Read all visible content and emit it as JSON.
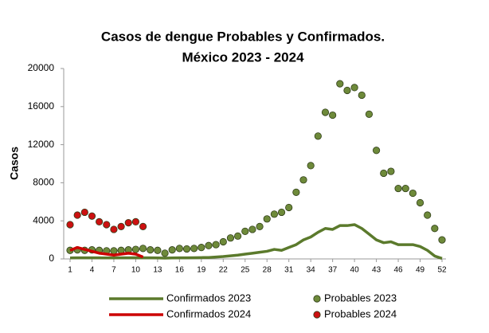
{
  "chart_data": {
    "type": "line",
    "title": [
      "Casos de dengue Probables y Confirmados.",
      "México 2023 - 2024"
    ],
    "y_label": "Casos",
    "x": [
      1,
      2,
      3,
      4,
      5,
      6,
      7,
      8,
      9,
      10,
      11,
      12,
      13,
      14,
      15,
      16,
      17,
      18,
      19,
      20,
      21,
      22,
      23,
      24,
      25,
      26,
      27,
      28,
      29,
      30,
      31,
      32,
      33,
      34,
      35,
      36,
      37,
      38,
      39,
      40,
      41,
      42,
      43,
      44,
      45,
      46,
      47,
      48,
      49,
      50,
      51,
      52
    ],
    "xlim": [
      1,
      52
    ],
    "xticks": [
      1,
      4,
      7,
      10,
      13,
      16,
      19,
      22,
      25,
      28,
      31,
      34,
      37,
      40,
      43,
      46,
      49,
      52
    ],
    "ylim": [
      0,
      20000
    ],
    "yticks": [
      0,
      4000,
      8000,
      12000,
      16000,
      20000
    ],
    "series": [
      {
        "name": "Confirmados 2023",
        "type": "line",
        "color": "#5b7a2c",
        "values": [
          100,
          120,
          110,
          120,
          110,
          100,
          100,
          110,
          120,
          130,
          120,
          110,
          100,
          80,
          100,
          110,
          120,
          130,
          140,
          150,
          200,
          250,
          320,
          400,
          500,
          600,
          700,
          800,
          1000,
          900,
          1200,
          1500,
          2000,
          2300,
          2800,
          3200,
          3100,
          3500,
          3500,
          3600,
          3200,
          2600,
          2000,
          1700,
          1800,
          1500,
          1500,
          1500,
          1300,
          900,
          300,
          50
        ]
      },
      {
        "name": "Probables 2023",
        "type": "scatter",
        "color": "#6e8a3a",
        "values": [
          900,
          950,
          900,
          950,
          900,
          850,
          850,
          900,
          950,
          1000,
          1100,
          950,
          900,
          600,
          950,
          1100,
          1050,
          1100,
          1200,
          1400,
          1500,
          1800,
          2200,
          2400,
          2900,
          3100,
          3400,
          4200,
          4700,
          4900,
          5400,
          7000,
          8300,
          9800,
          12900,
          15400,
          15100,
          18400,
          17700,
          18000,
          17200,
          15200,
          11400,
          9000,
          9200,
          7400,
          7400,
          6900,
          5900,
          4600,
          3200,
          2000
        ]
      },
      {
        "name": "Confirmados 2024",
        "type": "line",
        "color": "#cc0000",
        "values": [
          900,
          1200,
          1000,
          800,
          600,
          500,
          400,
          500,
          600,
          500,
          200,
          null,
          null,
          null,
          null,
          null,
          null,
          null,
          null,
          null,
          null,
          null,
          null,
          null,
          null,
          null,
          null,
          null,
          null,
          null,
          null,
          null,
          null,
          null,
          null,
          null,
          null,
          null,
          null,
          null,
          null,
          null,
          null,
          null,
          null,
          null,
          null,
          null,
          null,
          null,
          null,
          null
        ]
      },
      {
        "name": "Probables 2024",
        "type": "scatter",
        "color": "#cc1111",
        "values": [
          3600,
          4600,
          4900,
          4500,
          3900,
          3600,
          3100,
          3400,
          3800,
          3900,
          3400,
          null,
          null,
          null,
          null,
          null,
          null,
          null,
          null,
          null,
          null,
          null,
          null,
          null,
          null,
          null,
          null,
          null,
          null,
          null,
          null,
          null,
          null,
          null,
          null,
          null,
          null,
          null,
          null,
          null,
          null,
          null,
          null,
          null,
          null,
          null,
          null,
          null,
          null,
          null,
          null,
          null
        ]
      }
    ]
  }
}
